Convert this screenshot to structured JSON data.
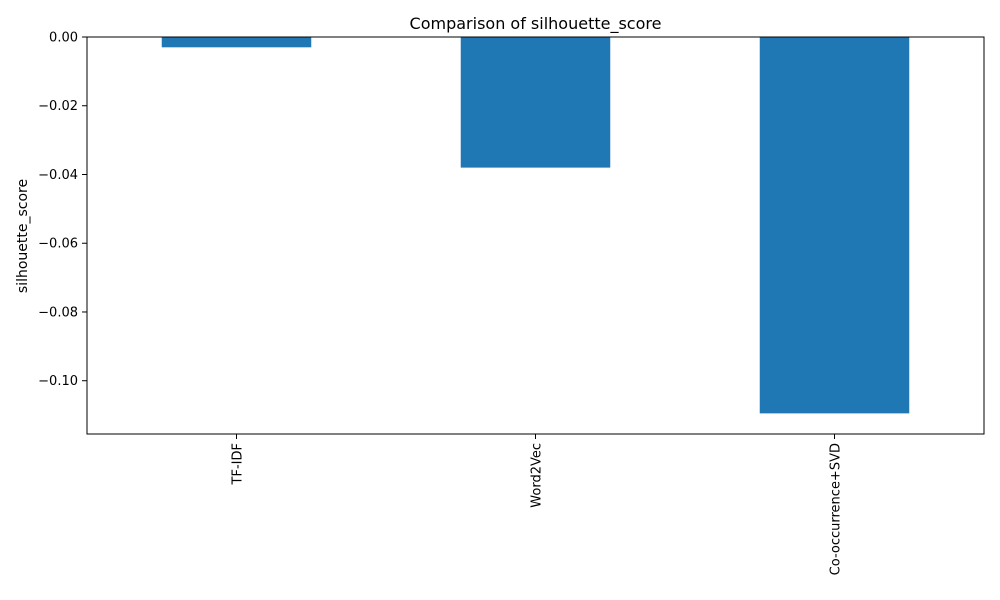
{
  "chart_data": {
    "type": "bar",
    "title": "Comparison of silhouette_score",
    "xlabel": "",
    "ylabel": "silhouette_score",
    "categories": [
      "TF-IDF",
      "Word2Vec",
      "Co-occurrence+SVD"
    ],
    "values": [
      -0.003,
      -0.038,
      -0.1095
    ],
    "ylim": [
      -0.1155,
      0.0
    ],
    "yticks": [
      0.0,
      -0.02,
      -0.04,
      -0.06,
      -0.08,
      -0.1
    ],
    "ytick_labels": [
      "0.00",
      "−0.02",
      "−0.04",
      "−0.06",
      "−0.08",
      "−0.10"
    ],
    "grid": false,
    "bar_color": "#1f77b4"
  }
}
